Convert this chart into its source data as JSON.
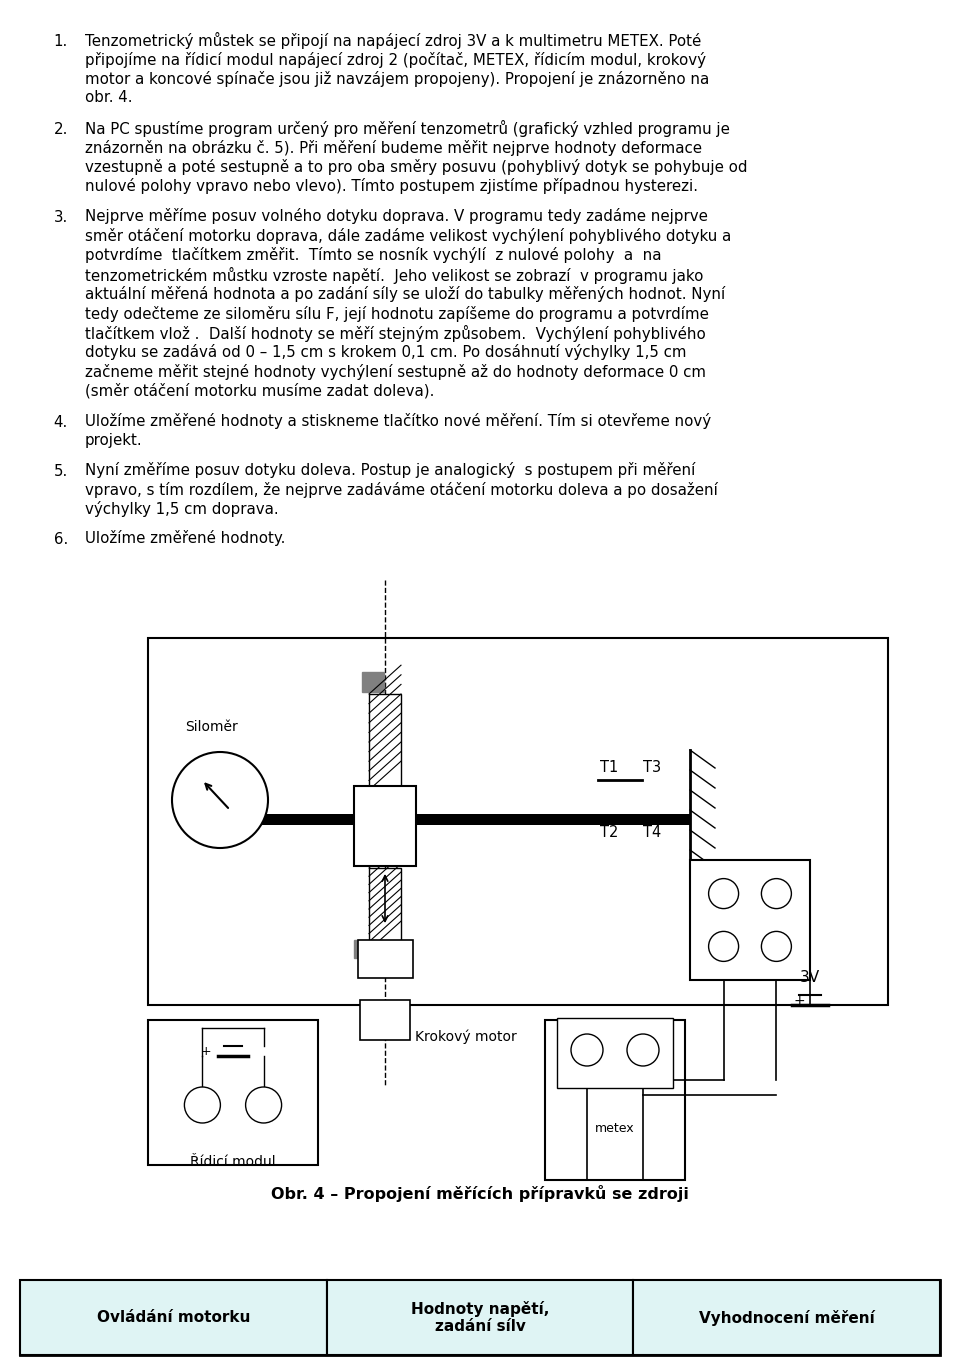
{
  "bg_color": "#ffffff",
  "page_width": 9.6,
  "page_height": 13.67,
  "dpi": 100,
  "text_paragraphs": [
    {
      "num": "1.",
      "lines": [
        "Tenzometrický můstek se připojí na napájecí zdroj 3V a k multimetru METEX. Poté",
        "připojíme na řídicí modul napájecí zdroj 2 (počítač, METEX, řídicím modul, krokový",
        "motor a koncové spínače jsou již navzájem propojeny). Propojení je znázorněno na",
        "obr. 4."
      ]
    },
    {
      "num": "2.",
      "lines": [
        "Na PC spustíme program určený pro měření tenzometrů (grafický vzhled programu je",
        "znázorněn na obrázku č. 5). Při měření budeme měřit nejprve hodnoty deformace",
        "vzestupně a poté sestupně a to pro oba směry posuvu (pohyblivý dotyk se pohybuje od",
        "nulové polohy vpravo nebo vlevo). Tímto postupem zjistíme případnou hysterezi."
      ]
    },
    {
      "num": "3.",
      "lines": [
        "Nejprve měříme posuv volného dotyku doprava. V programu tedy zadáme nejprve",
        "směr otáčení motorku doprava, dále zadáme velikost vychýlení pohyblivého dotyku a",
        "potvrdíme  tlačítkem změřit.  Tímto se nosník vychýlí  z nulové polohy  a  na",
        "tenzometrickém můstku vzroste napětí.  Jeho velikost se zobrazí  v programu jako",
        "aktuální měřená hodnota a po zadání síly se uloží do tabulky měřených hodnot. Nyní",
        "tedy odečteme ze siloměru sílu F, její hodnotu zapíšeme do programu a potvrdíme",
        "tlačítkem vlož .  Další hodnoty se měří stejným způsobem.  Vychýlení pohyblivého",
        "dotyku se zadává od 0 – 1,5 cm s krokem 0,1 cm. Po dosáhnutí výchylky 1,5 cm",
        "začneme měřit stejné hodnoty vychýlení sestupně až do hodnoty deformace 0 cm",
        "(směr otáčení motorku musíme zadat doleva)."
      ]
    },
    {
      "num": "4.",
      "lines": [
        "Uložíme změřené hodnoty a stiskneme tlačítko nové měření. Tím si otevřeme nový",
        "projekt."
      ]
    },
    {
      "num": "5.",
      "lines": [
        "Nyní změříme posuv dotyku doleva. Postup je analogický  s postupem při měření",
        "vpravo, s tím rozdílem, že nejprve zadáváme otáčení motorku doleva a po dosažení",
        "výchylky 1,5 cm doprava."
      ]
    },
    {
      "num": "6.",
      "lines": [
        "Uložíme změřené hodnoty."
      ]
    }
  ],
  "caption": "Obr. 4 – Propojení měřících přípravků se zdroji",
  "footer_labels": [
    "Ovládání motorku",
    "Hodnoty napětí,\nzadání sílv",
    "Vyhodnocení měření"
  ],
  "footer_bg": "#dff4f4",
  "footer_border": "#000000"
}
